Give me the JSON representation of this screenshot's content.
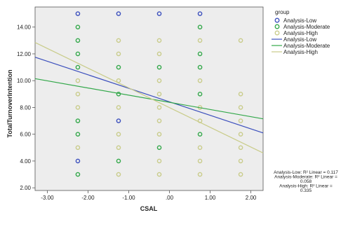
{
  "chart_data": {
    "type": "scatter",
    "xlabel": "CSAL",
    "ylabel": "TotalTurnoverIntention",
    "xlim": [
      -3.3,
      2.3
    ],
    "ylim": [
      1.8,
      15.5
    ],
    "x_ticks": [
      "-3.00",
      "-2.00",
      "-1.00",
      ".00",
      "1.00",
      "2.00"
    ],
    "x_tick_values": [
      -3,
      -2,
      -1,
      0,
      1,
      2
    ],
    "y_ticks": [
      "2.00",
      "4.00",
      "6.00",
      "8.00",
      "10.00",
      "12.00",
      "14.00"
    ],
    "y_tick_values": [
      2,
      4,
      6,
      8,
      10,
      12,
      14
    ],
    "plot_background": "#ededed",
    "legend": {
      "title": "group",
      "position": "right",
      "marker_entries": [
        "Analysis-Low",
        "Analysis-Moderate",
        "Analysis-High"
      ],
      "line_entries": [
        "Analysis-Low",
        "Analysis-Moderate",
        "Analysis-High"
      ]
    },
    "series": [
      {
        "name": "Analysis-Low",
        "color": "#3b4fbd",
        "points": [
          {
            "x": -2.25,
            "y": 15
          },
          {
            "x": -2.25,
            "y": 4
          },
          {
            "x": -1.25,
            "y": 15
          },
          {
            "x": -1.25,
            "y": 7
          },
          {
            "x": -0.25,
            "y": 15
          },
          {
            "x": 0.75,
            "y": 15
          }
        ],
        "fit_line": {
          "x": [
            -3.3,
            2.3
          ],
          "y": [
            11.75,
            6.1
          ]
        }
      },
      {
        "name": "Analysis-Moderate",
        "color": "#33a84a",
        "points": [
          {
            "x": -2.25,
            "y": 14
          },
          {
            "x": -2.25,
            "y": 13
          },
          {
            "x": -2.25,
            "y": 12
          },
          {
            "x": -2.25,
            "y": 11
          },
          {
            "x": -2.25,
            "y": 7
          },
          {
            "x": -2.25,
            "y": 6
          },
          {
            "x": -2.25,
            "y": 3
          },
          {
            "x": -1.25,
            "y": 11
          },
          {
            "x": -1.25,
            "y": 9
          },
          {
            "x": -1.25,
            "y": 4
          },
          {
            "x": -0.25,
            "y": 11
          },
          {
            "x": -0.25,
            "y": 5
          },
          {
            "x": 0.75,
            "y": 14
          },
          {
            "x": 0.75,
            "y": 12
          },
          {
            "x": 0.75,
            "y": 11
          },
          {
            "x": 0.75,
            "y": 9
          },
          {
            "x": 0.75,
            "y": 6
          }
        ],
        "fit_line": {
          "x": [
            -3.3,
            2.3
          ],
          "y": [
            10.15,
            7.15
          ]
        }
      },
      {
        "name": "Analysis-High",
        "color": "#c9cc8a",
        "points": [
          {
            "x": -2.25,
            "y": 10
          },
          {
            "x": -2.25,
            "y": 9
          },
          {
            "x": -2.25,
            "y": 8
          },
          {
            "x": -2.25,
            "y": 5
          },
          {
            "x": -1.25,
            "y": 13
          },
          {
            "x": -1.25,
            "y": 12
          },
          {
            "x": -1.25,
            "y": 10
          },
          {
            "x": -1.25,
            "y": 8
          },
          {
            "x": -1.25,
            "y": 6
          },
          {
            "x": -1.25,
            "y": 5
          },
          {
            "x": -1.25,
            "y": 3
          },
          {
            "x": -0.25,
            "y": 13
          },
          {
            "x": -0.25,
            "y": 12
          },
          {
            "x": -0.25,
            "y": 10
          },
          {
            "x": -0.25,
            "y": 9
          },
          {
            "x": -0.25,
            "y": 8
          },
          {
            "x": -0.25,
            "y": 7
          },
          {
            "x": -0.25,
            "y": 6
          },
          {
            "x": -0.25,
            "y": 4
          },
          {
            "x": -0.25,
            "y": 3
          },
          {
            "x": 0.75,
            "y": 13
          },
          {
            "x": 0.75,
            "y": 10
          },
          {
            "x": 0.75,
            "y": 8
          },
          {
            "x": 0.75,
            "y": 7
          },
          {
            "x": 0.75,
            "y": 5
          },
          {
            "x": 0.75,
            "y": 4
          },
          {
            "x": 0.75,
            "y": 3
          },
          {
            "x": 1.75,
            "y": 13
          },
          {
            "x": 1.75,
            "y": 9
          },
          {
            "x": 1.75,
            "y": 8
          },
          {
            "x": 1.75,
            "y": 7
          },
          {
            "x": 1.75,
            "y": 6
          },
          {
            "x": 1.75,
            "y": 5
          },
          {
            "x": 1.75,
            "y": 4
          },
          {
            "x": 1.75,
            "y": 3
          }
        ],
        "fit_line": {
          "x": [
            -3.3,
            2.3
          ],
          "y": [
            12.85,
            4.6
          ]
        }
      }
    ],
    "annotations": [
      "Analysis-Low: R² Linear = 0.117",
      "Analysis-Moderate: R² Linear =",
      "0.058",
      "Analysis-High: R² Linear =",
      "0.335"
    ]
  }
}
